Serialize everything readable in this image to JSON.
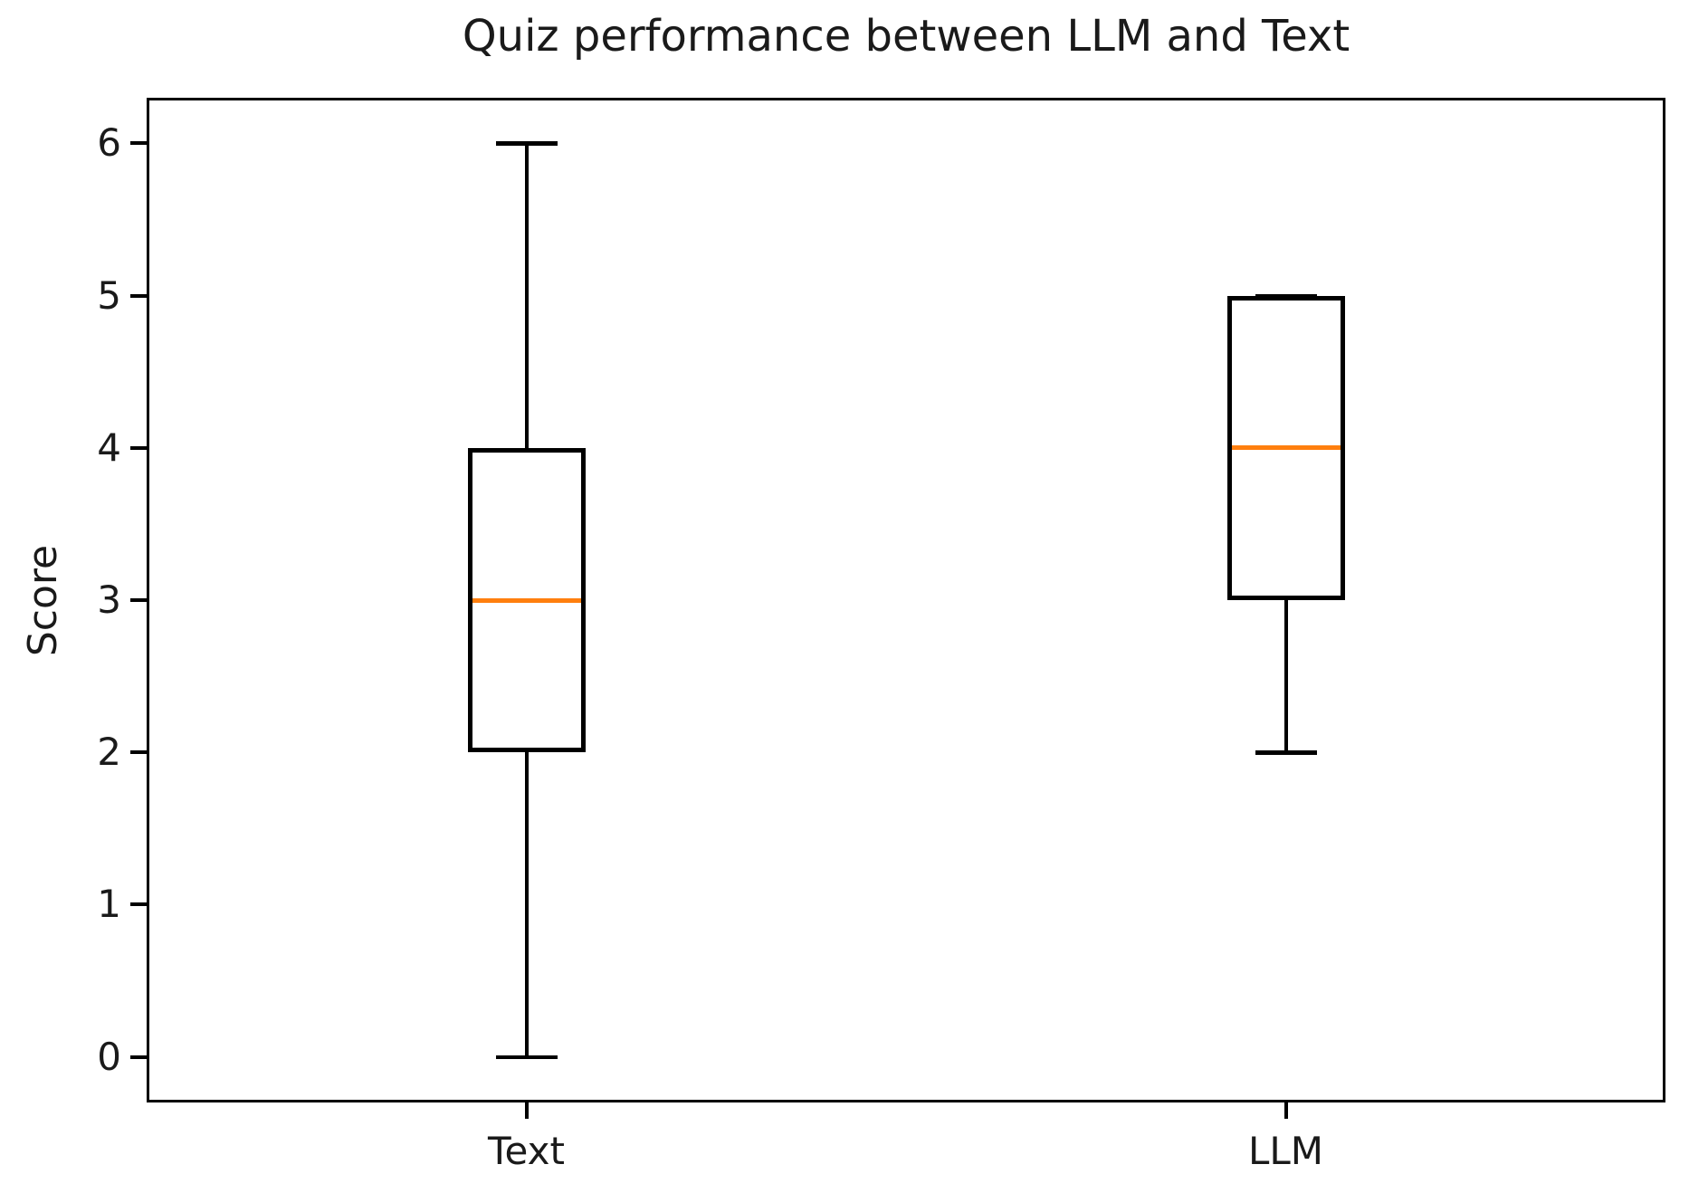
{
  "chart_data": {
    "type": "boxplot",
    "title": "Quiz performance between LLM and Text",
    "ylabel": "Score",
    "xlabel": "",
    "categories": [
      "Text",
      "LLM"
    ],
    "yticks": [
      "0",
      "1",
      "2",
      "3",
      "4",
      "5",
      "6"
    ],
    "ytick_values": [
      0,
      1,
      2,
      3,
      4,
      5,
      6
    ],
    "ylim": [
      -0.3,
      6.3
    ],
    "grid": false,
    "legend": null,
    "series": [
      {
        "name": "Text",
        "whisker_low": 0,
        "q1": 2,
        "median": 3,
        "q3": 4,
        "whisker_high": 6
      },
      {
        "name": "LLM",
        "whisker_low": 2,
        "q1": 3,
        "median": 4,
        "q3": 5,
        "whisker_high": 5
      }
    ],
    "colors": {
      "line": "#000000",
      "median": "#ff7f0e",
      "background": "#ffffff",
      "text": "#1a1a1a"
    }
  }
}
